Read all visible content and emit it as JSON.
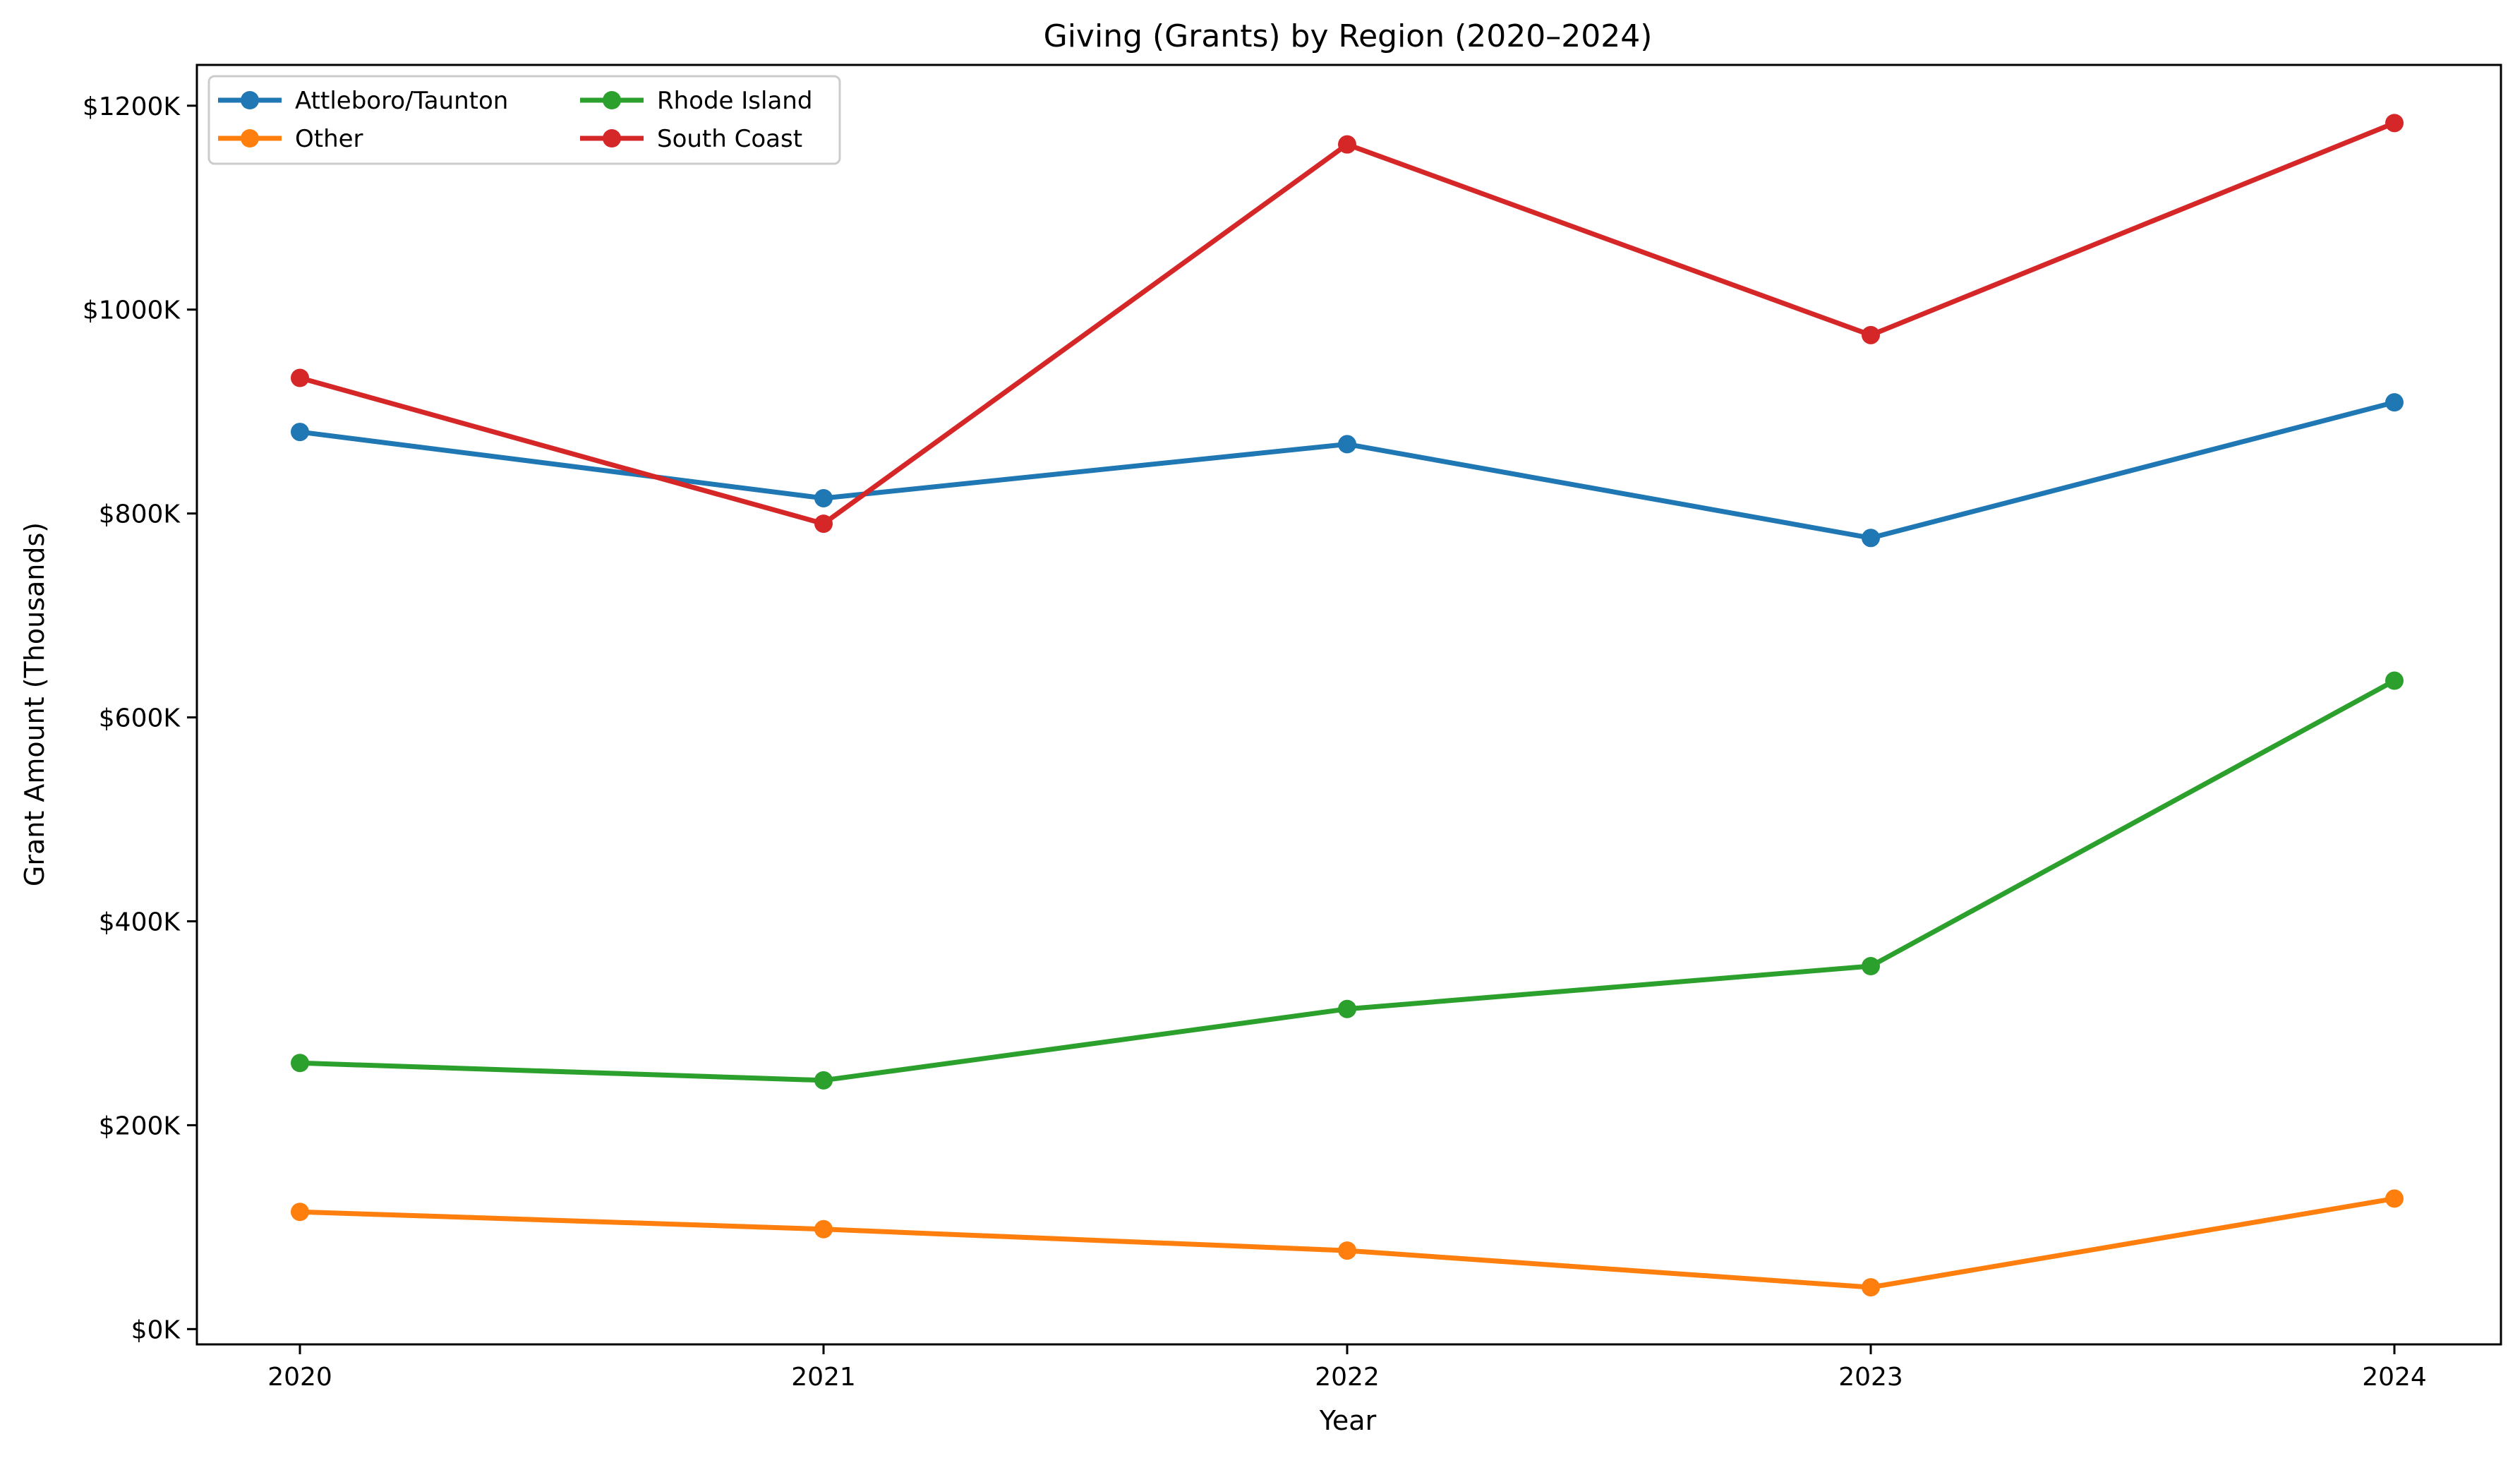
{
  "chart_data": {
    "type": "line",
    "title": "Giving (Grants) by Region (2020–2024)",
    "xlabel": "Year",
    "ylabel": "Grant Amount (Thousands)",
    "categories": [
      "2020",
      "2021",
      "2022",
      "2023",
      "2024"
    ],
    "y_ticks": [
      {
        "value": 0,
        "label": "$0K"
      },
      {
        "value": 200,
        "label": "$200K"
      },
      {
        "value": 400,
        "label": "$400K"
      },
      {
        "value": 600,
        "label": "$600K"
      },
      {
        "value": 800,
        "label": "$800K"
      },
      {
        "value": 1000,
        "label": "$1000K"
      },
      {
        "value": 1200,
        "label": "$1200K"
      }
    ],
    "ylim": [
      -15,
      1240
    ],
    "grid": false,
    "legend_position": "top-left",
    "series": [
      {
        "name": "Attleboro/Taunton",
        "color": "#1f77b4",
        "values": [
          880,
          815,
          868,
          776,
          909
        ]
      },
      {
        "name": "Other",
        "color": "#ff7f0e",
        "values": [
          115,
          98,
          77,
          41,
          128
        ]
      },
      {
        "name": "Rhode Island",
        "color": "#2ca02c",
        "values": [
          261,
          244,
          314,
          356,
          636
        ]
      },
      {
        "name": "South Coast",
        "color": "#d62728",
        "values": [
          933,
          790,
          1162,
          975,
          1183
        ]
      }
    ]
  }
}
